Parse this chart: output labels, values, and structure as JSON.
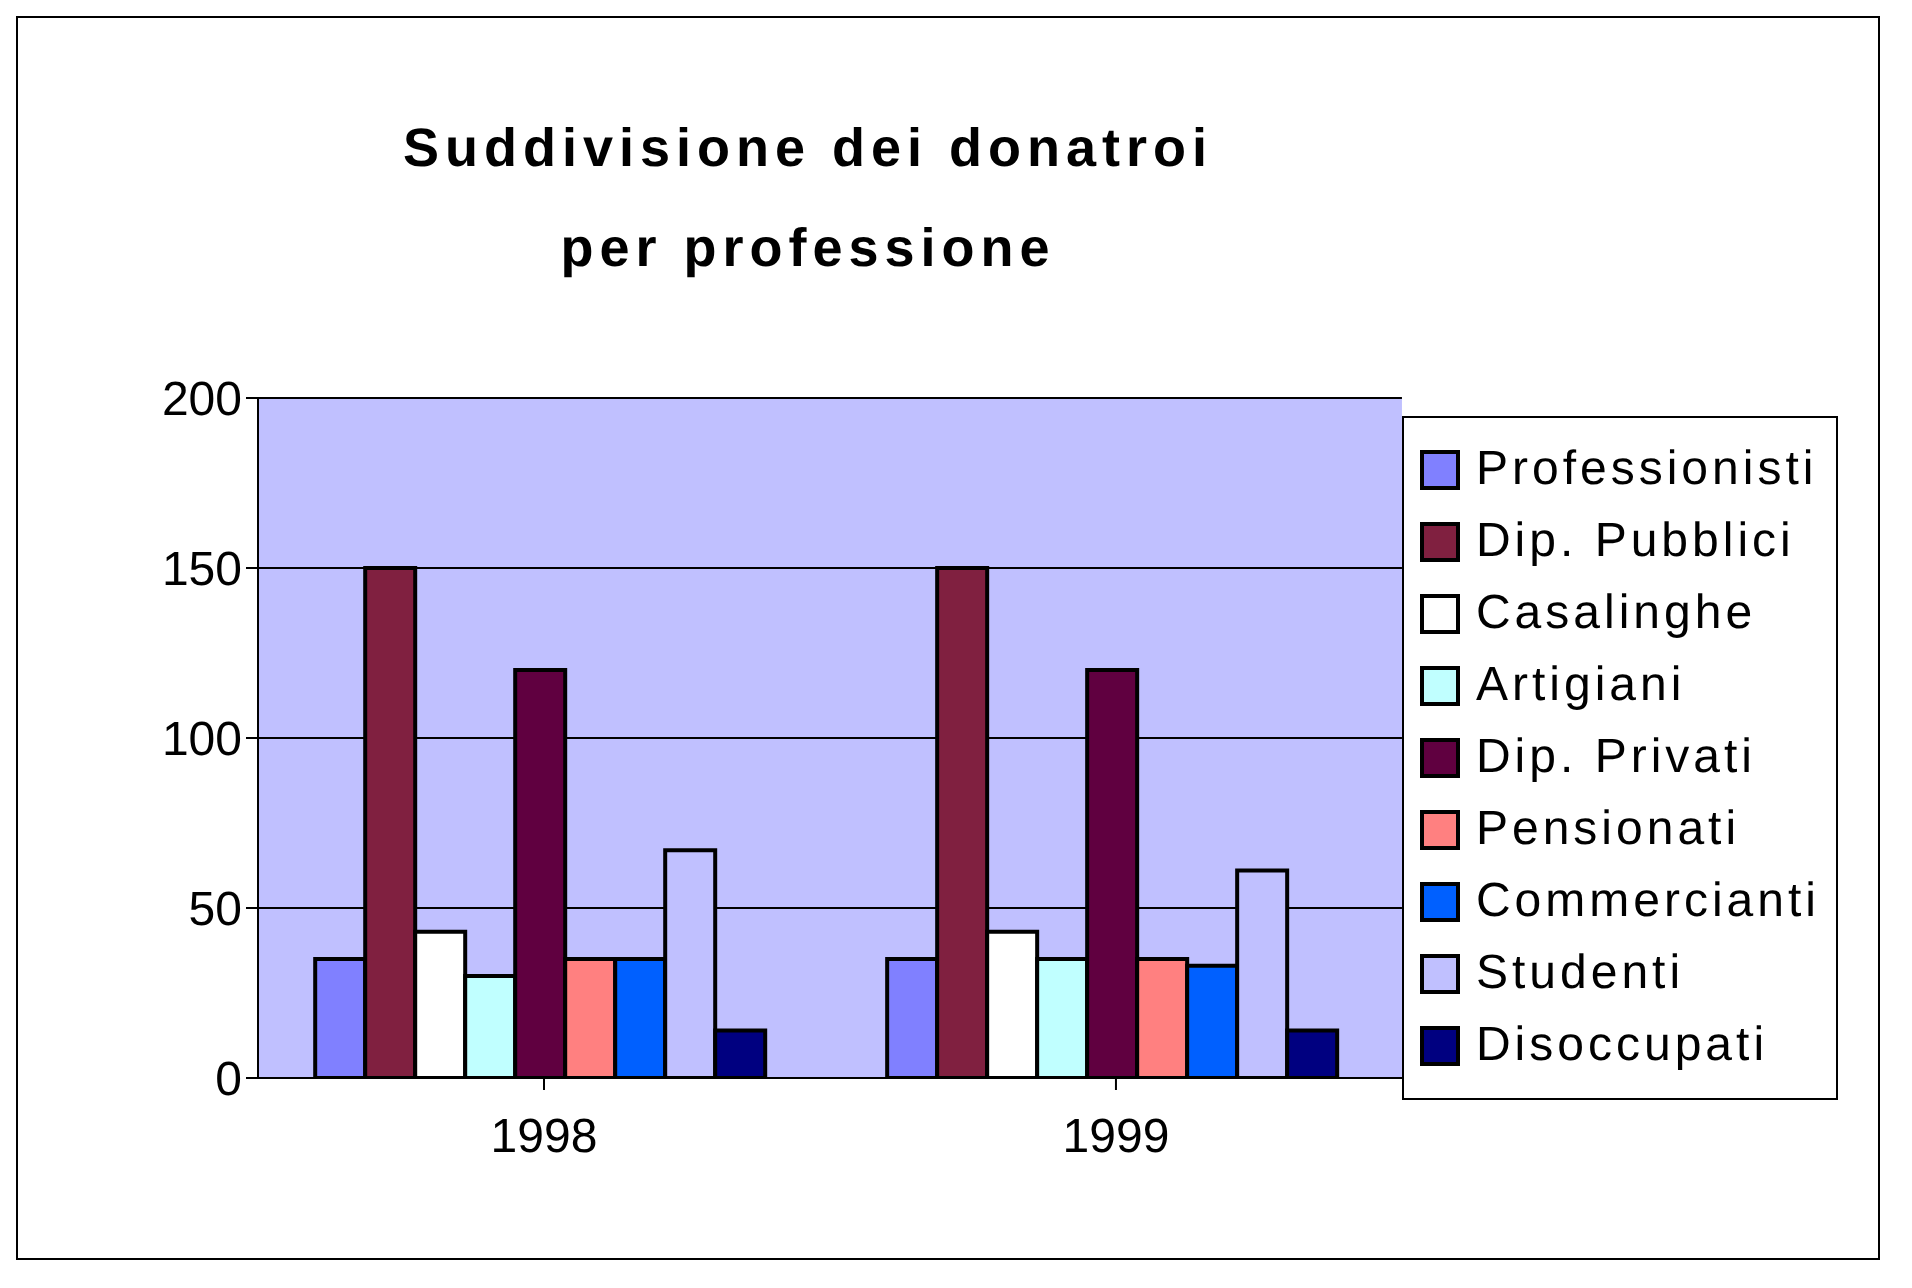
{
  "chart_data": {
    "type": "bar",
    "title": "Suddivisione dei donatroi per professione",
    "categories": [
      "1998",
      "1999"
    ],
    "series": [
      {
        "name": "Professionisti",
        "color": "#8080ff",
        "values": [
          35,
          35
        ]
      },
      {
        "name": "Dip. Pubblici",
        "color": "#802040",
        "values": [
          150,
          150
        ]
      },
      {
        "name": "Casalinghe",
        "color": "#ffffff",
        "values": [
          43,
          43
        ]
      },
      {
        "name": "Artigiani",
        "color": "#c0ffff",
        "values": [
          30,
          35
        ]
      },
      {
        "name": "Dip. Privati",
        "color": "#600040",
        "values": [
          120,
          120
        ]
      },
      {
        "name": "Pensionati",
        "color": "#ff8080",
        "values": [
          35,
          35
        ]
      },
      {
        "name": "Commercianti",
        "color": "#0060ff",
        "values": [
          35,
          33
        ]
      },
      {
        "name": "Studenti",
        "color": "#c0c0ff",
        "values": [
          67,
          61
        ]
      },
      {
        "name": "Disoccupati",
        "color": "#000080",
        "values": [
          14,
          14
        ]
      }
    ],
    "ylim": [
      0,
      200
    ],
    "yticks": [
      0,
      50,
      100,
      150,
      200
    ],
    "grid": "y",
    "legend": "right"
  }
}
